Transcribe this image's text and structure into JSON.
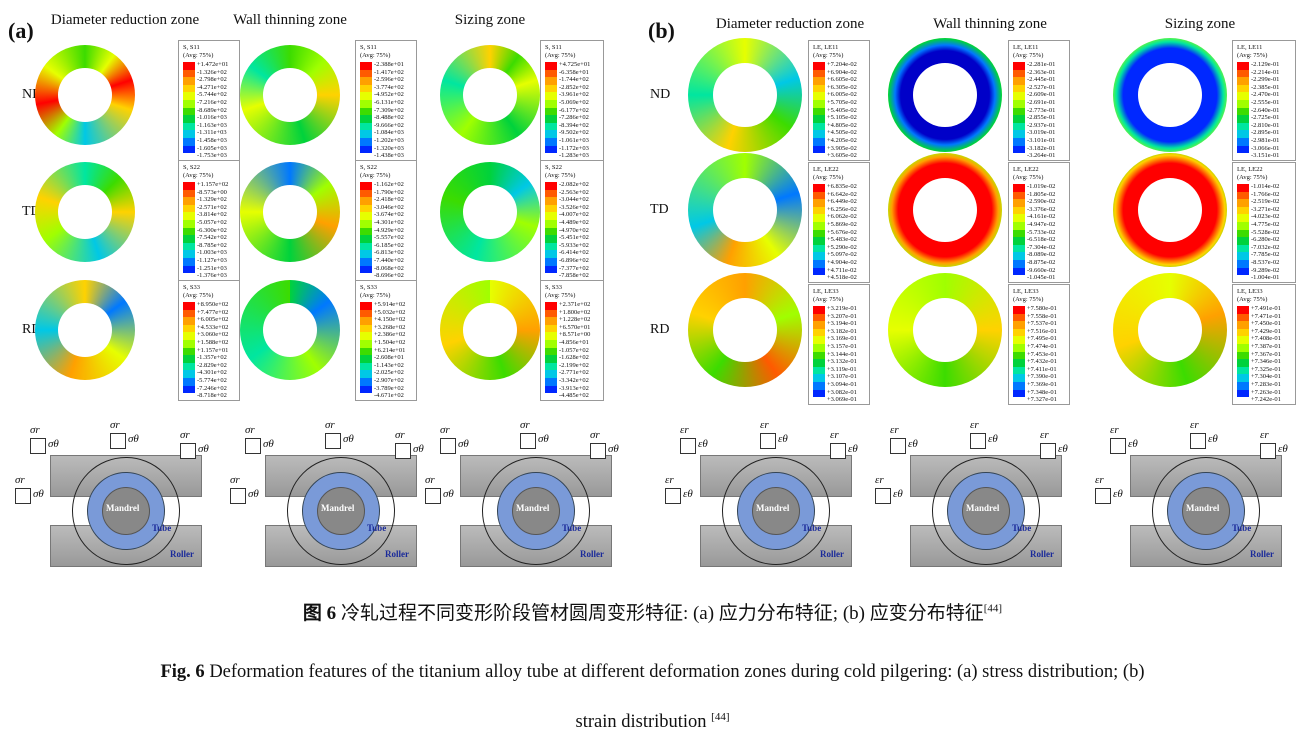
{
  "panels": [
    {
      "label": "(a)",
      "zones": [
        "Diameter reduction zone",
        "Wall thinning zone",
        "Sizing zone"
      ],
      "rows": [
        "ND",
        "TD",
        "RD"
      ],
      "legends": [
        [
          {
            "title": "S, S11",
            "avg": "(Avg: 75%)",
            "values": [
              "+1.472e+01",
              "-1.326e+02",
              "-2.798e+02",
              "-4.271e+02",
              "-5.744e+02",
              "-7.216e+02",
              "-8.689e+02",
              "-1.016e+03",
              "-1.163e+03",
              "-1.311e+03",
              "-1.458e+03",
              "-1.605e+03",
              "-1.753e+03"
            ]
          },
          {
            "title": "S, S11",
            "avg": "(Avg: 75%)",
            "values": [
              "-2.388e+01",
              "-1.417e+02",
              "-2.596e+02",
              "-3.774e+02",
              "-4.952e+02",
              "-6.131e+02",
              "-7.309e+02",
              "-8.488e+02",
              "-9.666e+02",
              "-1.084e+03",
              "-1.202e+03",
              "-1.320e+03",
              "-1.438e+03"
            ]
          },
          {
            "title": "S, S11",
            "avg": "(Avg: 75%)",
            "values": [
              "+4.725e+01",
              "-6.358e+01",
              "-1.744e+02",
              "-2.852e+02",
              "-3.961e+02",
              "-5.069e+02",
              "-6.177e+02",
              "-7.286e+02",
              "-8.394e+02",
              "-9.502e+02",
              "-1.061e+03",
              "-1.172e+03",
              "-1.283e+03"
            ]
          }
        ],
        [
          {
            "title": "S, S22",
            "avg": "(Avg: 75%)",
            "values": [
              "+1.157e+02",
              "-8.573e+00",
              "-1.329e+02",
              "-2.571e+02",
              "-3.814e+02",
              "-5.057e+02",
              "-6.300e+02",
              "-7.542e+02",
              "-8.785e+02",
              "-1.003e+03",
              "-1.127e+03",
              "-1.251e+03",
              "-1.376e+03"
            ]
          },
          {
            "title": "S, S22",
            "avg": "(Avg: 75%)",
            "values": [
              "-1.162e+02",
              "-1.790e+02",
              "-2.418e+02",
              "-3.046e+02",
              "-3.674e+02",
              "-4.301e+02",
              "-4.929e+02",
              "-5.557e+02",
              "-6.185e+02",
              "-6.813e+02",
              "-7.440e+02",
              "-8.068e+02",
              "-8.696e+02"
            ]
          },
          {
            "title": "S, S22",
            "avg": "(Avg: 75%)",
            "values": [
              "-2.082e+02",
              "-2.563e+02",
              "-3.044e+02",
              "-3.526e+02",
              "-4.007e+02",
              "-4.489e+02",
              "-4.970e+02",
              "-5.451e+02",
              "-5.933e+02",
              "-6.414e+02",
              "-6.896e+02",
              "-7.377e+02",
              "-7.858e+02"
            ]
          }
        ],
        [
          {
            "title": "S, S33",
            "avg": "(Avg: 75%)",
            "values": [
              "+8.950e+02",
              "+7.477e+02",
              "+6.005e+02",
              "+4.533e+02",
              "+3.060e+02",
              "+1.588e+02",
              "+1.157e+01",
              "-1.357e+02",
              "-2.829e+02",
              "-4.301e+02",
              "-5.774e+02",
              "-7.246e+02",
              "-8.718e+02"
            ]
          },
          {
            "title": "S, S33",
            "avg": "(Avg: 75%)",
            "values": [
              "+5.914e+02",
              "+5.032e+02",
              "+4.150e+02",
              "+3.268e+02",
              "+2.386e+02",
              "+1.504e+02",
              "+6.214e+01",
              "-2.608e+01",
              "-1.143e+02",
              "-2.025e+02",
              "-2.907e+02",
              "-3.789e+02",
              "-4.671e+02"
            ]
          },
          {
            "title": "S, S33",
            "avg": "(Avg: 75%)",
            "values": [
              "+2.371e+02",
              "+1.800e+02",
              "+1.228e+02",
              "+6.570e+01",
              "+8.571e+00",
              "-4.856e+01",
              "-1.057e+02",
              "-1.628e+02",
              "-2.199e+02",
              "-2.771e+02",
              "-3.342e+02",
              "-3.913e+02",
              "-4.485e+02"
            ]
          }
        ]
      ],
      "schematic": {
        "symbols": [
          "σr",
          "σθ"
        ],
        "labels": [
          "Mandrel",
          "Tube",
          "Roller"
        ]
      }
    },
    {
      "label": "(b)",
      "zones": [
        "Diameter reduction zone",
        "Wall thinning zone",
        "Sizing zone"
      ],
      "rows": [
        "ND",
        "TD",
        "RD"
      ],
      "legends": [
        [
          {
            "title": "LE, LE11",
            "avg": "(Avg: 75%)",
            "values": [
              "+7.204e-02",
              "+6.904e-02",
              "+6.605e-02",
              "+6.305e-02",
              "+6.005e-02",
              "+5.705e-02",
              "+5.405e-02",
              "+5.105e-02",
              "+4.805e-02",
              "+4.505e-02",
              "+4.205e-02",
              "+3.905e-02",
              "+3.605e-02"
            ]
          },
          {
            "title": "LE, LE11",
            "avg": "(Avg: 75%)",
            "values": [
              "-2.281e-01",
              "-2.363e-01",
              "-2.445e-01",
              "-2.527e-01",
              "-2.609e-01",
              "-2.691e-01",
              "-2.773e-01",
              "-2.855e-01",
              "-2.937e-01",
              "-3.019e-01",
              "-3.101e-01",
              "-3.182e-01",
              "-3.264e-01"
            ]
          },
          {
            "title": "LE, LE11",
            "avg": "(Avg: 75%)",
            "values": [
              "-2.129e-01",
              "-2.214e-01",
              "-2.299e-01",
              "-2.385e-01",
              "-2.470e-01",
              "-2.555e-01",
              "-2.640e-01",
              "-2.725e-01",
              "-2.810e-01",
              "-2.895e-01",
              "-2.981e-01",
              "-3.066e-01",
              "-3.151e-01"
            ]
          }
        ],
        [
          {
            "title": "LE, LE22",
            "avg": "(Avg: 75%)",
            "values": [
              "+6.835e-02",
              "+6.642e-02",
              "+6.449e-02",
              "+6.256e-02",
              "+6.062e-02",
              "+5.869e-02",
              "+5.676e-02",
              "+5.483e-02",
              "+5.290e-02",
              "+5.097e-02",
              "+4.904e-02",
              "+4.711e-02",
              "+4.518e-02"
            ]
          },
          {
            "title": "LE, LE22",
            "avg": "(Avg: 75%)",
            "values": [
              "-1.019e-02",
              "-1.805e-02",
              "-2.590e-02",
              "-3.376e-02",
              "-4.161e-02",
              "-4.947e-02",
              "-5.733e-02",
              "-6.518e-02",
              "-7.304e-02",
              "-8.089e-02",
              "-8.875e-02",
              "-9.660e-02",
              "-1.045e-01"
            ]
          },
          {
            "title": "LE, LE22",
            "avg": "(Avg: 75%)",
            "values": [
              "-1.014e-02",
              "-1.766e-02",
              "-2.519e-02",
              "-3.271e-02",
              "-4.023e-02",
              "-4.775e-02",
              "-5.528e-02",
              "-6.280e-02",
              "-7.032e-02",
              "-7.785e-02",
              "-8.537e-02",
              "-9.289e-02",
              "-1.004e-01"
            ]
          }
        ],
        [
          {
            "title": "LE, LE33",
            "avg": "(Avg: 75%)",
            "values": [
              "+3.219e-01",
              "+3.207e-01",
              "+3.194e-01",
              "+3.182e-01",
              "+3.169e-01",
              "+3.157e-01",
              "+3.144e-01",
              "+3.132e-01",
              "+3.119e-01",
              "+3.107e-01",
              "+3.094e-01",
              "+3.082e-01",
              "+3.069e-01"
            ]
          },
          {
            "title": "LE, LE33",
            "avg": "(Avg: 75%)",
            "values": [
              "+7.580e-01",
              "+7.558e-01",
              "+7.537e-01",
              "+7.516e-01",
              "+7.495e-01",
              "+7.474e-01",
              "+7.453e-01",
              "+7.432e-01",
              "+7.411e-01",
              "+7.390e-01",
              "+7.369e-01",
              "+7.348e-01",
              "+7.327e-01"
            ]
          },
          {
            "title": "LE, LE33",
            "avg": "(Avg: 75%)",
            "values": [
              "+7.491e-01",
              "+7.471e-01",
              "+7.450e-01",
              "+7.429e-01",
              "+7.408e-01",
              "+7.387e-01",
              "+7.367e-01",
              "+7.346e-01",
              "+7.325e-01",
              "+7.304e-01",
              "+7.283e-01",
              "+7.263e-01",
              "+7.242e-01"
            ]
          }
        ]
      ],
      "schematic": {
        "symbols": [
          "εr",
          "εθ"
        ],
        "labels": [
          "Mandrel",
          "Tube",
          "Roller"
        ]
      }
    }
  ],
  "colors": {
    "contour": [
      "#ff0000",
      "#ff5a00",
      "#ffa000",
      "#ffd200",
      "#e6ff00",
      "#a0ff00",
      "#3cdc00",
      "#00d23c",
      "#00e6a0",
      "#00c8e6",
      "#0078ff",
      "#0028ff",
      "#0000c8"
    ],
    "tube": "#7a9ad8",
    "roller": "#a8a8a8"
  },
  "caption": {
    "cn_label": "图 6",
    "cn_text": "冷轧过程不同变形阶段管材圆周变形特征: (a)  应力分布特征; (b)  应变分布特征",
    "cn_ref": "[44]",
    "en_label": "Fig. 6",
    "en_text": "Deformation features of the titanium alloy tube at different deformation zones during cold pilgering: (a) stress distribution; (b)",
    "en_text2": "strain distribution",
    "en_ref": "[44]"
  }
}
